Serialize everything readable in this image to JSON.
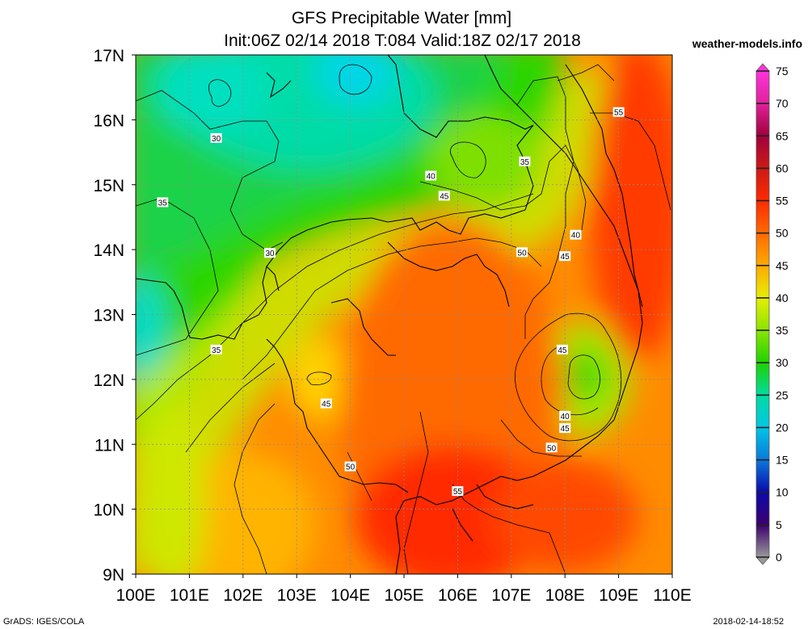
{
  "header": {
    "title_line1": "GFS Precipitable Water [mm]",
    "title_line2": "Init:06Z 02/14 2018 T:084 Valid:18Z 02/17 2018",
    "site": "weather-models.info"
  },
  "footer": {
    "left": "GrADS: IGES/COLA",
    "right": "2018-02-14-18:52"
  },
  "map": {
    "lon_range": [
      100,
      110
    ],
    "lat_range": [
      9,
      17
    ],
    "x_ticks": [
      "100E",
      "101E",
      "102E",
      "103E",
      "104E",
      "105E",
      "106E",
      "107E",
      "108E",
      "109E",
      "110E"
    ],
    "y_ticks": [
      "17N",
      "16N",
      "15N",
      "14N",
      "13N",
      "12N",
      "11N",
      "10N",
      "9N"
    ],
    "grid": "dotted",
    "contour_labels": [
      {
        "text": "30",
        "lon": 101.5,
        "lat": 15.72
      },
      {
        "text": "30",
        "lon": 102.5,
        "lat": 13.95
      },
      {
        "text": "35",
        "lon": 100.5,
        "lat": 14.73
      },
      {
        "text": "35",
        "lon": 101.5,
        "lat": 12.46
      },
      {
        "text": "35",
        "lon": 107.25,
        "lat": 15.36
      },
      {
        "text": "40",
        "lon": 105.5,
        "lat": 15.14
      },
      {
        "text": "40",
        "lon": 108.2,
        "lat": 14.23
      },
      {
        "text": "40",
        "lon": 108.0,
        "lat": 11.44
      },
      {
        "text": "45",
        "lon": 105.75,
        "lat": 14.83
      },
      {
        "text": "45",
        "lon": 108.0,
        "lat": 13.9
      },
      {
        "text": "45",
        "lon": 107.95,
        "lat": 12.46
      },
      {
        "text": "45",
        "lon": 108.0,
        "lat": 11.25
      },
      {
        "text": "45",
        "lon": 103.55,
        "lat": 11.63
      },
      {
        "text": "50",
        "lon": 107.2,
        "lat": 13.96
      },
      {
        "text": "50",
        "lon": 107.75,
        "lat": 10.95
      },
      {
        "text": "50",
        "lon": 104.0,
        "lat": 10.66
      },
      {
        "text": "55",
        "lon": 109.0,
        "lat": 16.12
      },
      {
        "text": "55",
        "lon": 106.0,
        "lat": 10.28
      }
    ]
  },
  "colorbar": {
    "labels": [
      "75",
      "70",
      "65",
      "60",
      "55",
      "50",
      "45",
      "40",
      "35",
      "30",
      "25",
      "20",
      "15",
      "10",
      "5",
      "0"
    ],
    "colors": [
      "#ff33dd",
      "#e0229a",
      "#a0003c",
      "#cc1a16",
      "#ff2a00",
      "#ff6a00",
      "#ffaa00",
      "#e6ee00",
      "#8ae400",
      "#1ed200",
      "#00dca0",
      "#00c6e6",
      "#0a78dc",
      "#0a0aaa",
      "#3c006e",
      "#999999"
    ]
  }
}
